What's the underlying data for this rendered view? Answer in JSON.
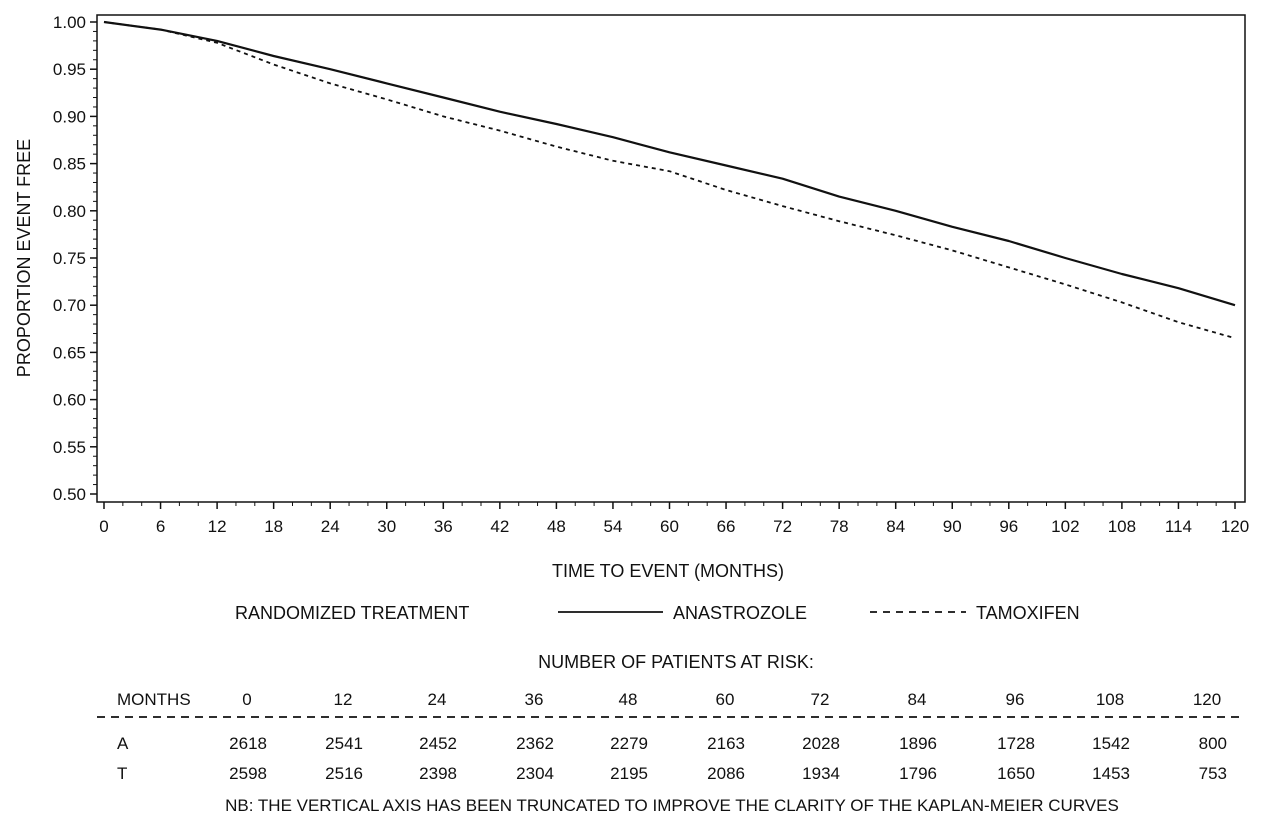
{
  "chart_data": {
    "type": "line",
    "xlabel": "TIME TO EVENT (MONTHS)",
    "ylabel": "PROPORTION EVENT FREE",
    "xlim": [
      0,
      120
    ],
    "ylim": [
      0.5,
      1.0
    ],
    "x_ticks": [
      "0",
      "6",
      "12",
      "18",
      "24",
      "30",
      "36",
      "42",
      "48",
      "54",
      "60",
      "66",
      "72",
      "78",
      "84",
      "90",
      "96",
      "102",
      "108",
      "114",
      "120"
    ],
    "y_ticks": [
      "0.50",
      "0.55",
      "0.60",
      "0.65",
      "0.70",
      "0.75",
      "0.80",
      "0.85",
      "0.90",
      "0.95",
      "1.00"
    ],
    "x": [
      0,
      6,
      12,
      18,
      24,
      30,
      36,
      42,
      48,
      54,
      60,
      66,
      72,
      78,
      84,
      90,
      96,
      102,
      108,
      114,
      120
    ],
    "series": [
      {
        "name": "ANASTROZOLE",
        "style": "solid",
        "values": [
          1.0,
          0.992,
          0.98,
          0.964,
          0.95,
          0.935,
          0.92,
          0.905,
          0.892,
          0.878,
          0.862,
          0.848,
          0.834,
          0.815,
          0.8,
          0.783,
          0.768,
          0.75,
          0.733,
          0.718,
          0.7
        ]
      },
      {
        "name": "TAMOXIFEN",
        "style": "dashed",
        "values": [
          1.0,
          0.992,
          0.978,
          0.955,
          0.935,
          0.918,
          0.9,
          0.885,
          0.868,
          0.853,
          0.842,
          0.822,
          0.805,
          0.789,
          0.774,
          0.758,
          0.74,
          0.722,
          0.703,
          0.682,
          0.665
        ]
      }
    ],
    "legend": {
      "title": "RANDOMIZED TREATMENT",
      "entries": [
        {
          "label": "ANASTROZOLE",
          "style": "solid"
        },
        {
          "label": "TAMOXIFEN",
          "style": "dashed"
        }
      ],
      "placement": "below-axis-title"
    },
    "grid": false,
    "risk_table": {
      "title": "NUMBER OF PATIENTS AT RISK:",
      "header_label": "MONTHS",
      "months": [
        "0",
        "12",
        "24",
        "36",
        "48",
        "60",
        "72",
        "84",
        "96",
        "108",
        "120"
      ],
      "rows": [
        {
          "label": "A",
          "values": [
            "2618",
            "2541",
            "2452",
            "2362",
            "2279",
            "2163",
            "2028",
            "1896",
            "1728",
            "1542",
            "800"
          ]
        },
        {
          "label": "T",
          "values": [
            "2598",
            "2516",
            "2398",
            "2304",
            "2195",
            "2086",
            "1934",
            "1796",
            "1650",
            "1453",
            "753"
          ]
        }
      ]
    },
    "note": "NB: THE VERTICAL AXIS HAS BEEN TRUNCATED TO IMPROVE THE CLARITY OF THE KAPLAN-MEIER CURVES"
  }
}
